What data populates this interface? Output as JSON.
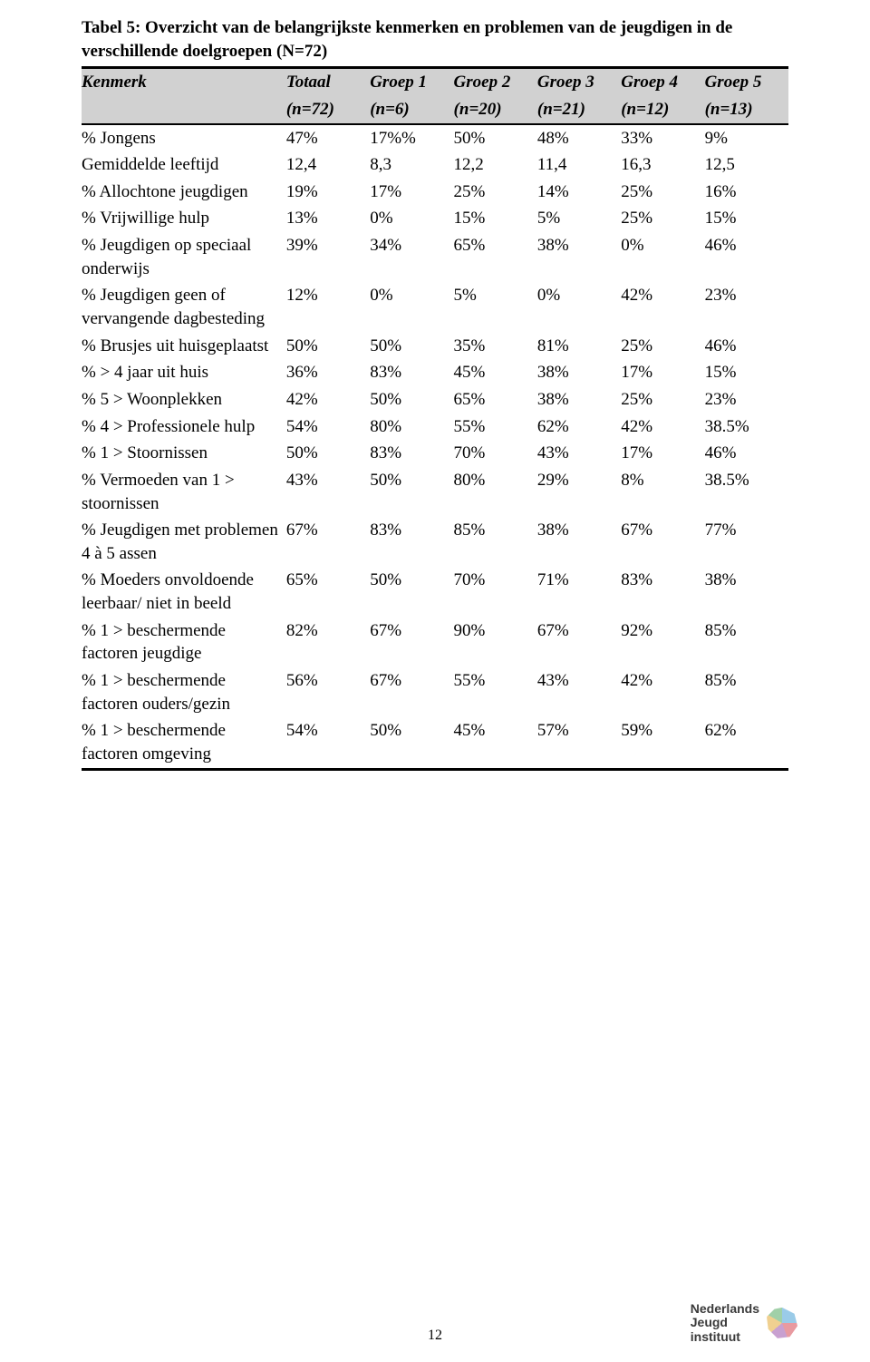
{
  "caption_line1": "Tabel 5: Overzicht van de belangrijkste kenmerken en problemen van de jeugdigen in de",
  "caption_line2": "verschillende doelgroepen (N=72)",
  "page_number": "12",
  "logo_line1": "Nederlands",
  "logo_line2": "Jeugd",
  "logo_line3": "instituut",
  "header_row1": [
    "Kenmerk",
    "Totaal",
    "Groep 1",
    "Groep 2",
    "Groep 3",
    "Groep 4",
    "Groep 5"
  ],
  "header_row2": [
    "",
    "(n=72)",
    "(n=6)",
    "(n=20)",
    "(n=21)",
    "(n=12)",
    "(n=13)"
  ],
  "rows": [
    {
      "label": "% Jongens",
      "vals": [
        "47%",
        "17%%",
        "50%",
        "48%",
        "33%",
        "9%"
      ]
    },
    {
      "label": "Gemiddelde leeftijd",
      "vals": [
        "12,4",
        "8,3",
        "12,2",
        "11,4",
        "16,3",
        "12,5"
      ]
    },
    {
      "label": "% Allochtone jeugdigen",
      "vals": [
        "19%",
        "17%",
        "25%",
        "14%",
        "25%",
        "16%"
      ]
    },
    {
      "label": "% Vrijwillige hulp",
      "vals": [
        "13%",
        "0%",
        "15%",
        "5%",
        "25%",
        "15%"
      ]
    },
    {
      "label": "% Jeugdigen op speciaal onderwijs",
      "vals": [
        "39%",
        "34%",
        "65%",
        "38%",
        "0%",
        "46%"
      ]
    },
    {
      "label": "% Jeugdigen geen of vervangende dagbesteding",
      "vals": [
        "12%",
        "0%",
        "5%",
        "0%",
        "42%",
        "23%"
      ]
    },
    {
      "label": "% Brusjes uit huisgeplaatst",
      "vals": [
        "50%",
        "50%",
        "35%",
        "81%",
        "25%",
        "46%"
      ]
    },
    {
      "label": "% > 4 jaar uit huis",
      "vals": [
        "36%",
        "83%",
        "45%",
        "38%",
        "17%",
        "15%"
      ]
    },
    {
      "label": "% 5 > Woonplekken",
      "vals": [
        "42%",
        "50%",
        "65%",
        "38%",
        "25%",
        "23%"
      ]
    },
    {
      "label": "% 4 > Professionele hulp",
      "vals": [
        "54%",
        "80%",
        "55%",
        "62%",
        "42%",
        "38.5%"
      ]
    },
    {
      "label": "% 1 > Stoornissen",
      "vals": [
        "50%",
        "83%",
        "70%",
        "43%",
        "17%",
        "46%"
      ]
    },
    {
      "label": "% Vermoeden van 1 > stoornissen",
      "vals": [
        "43%",
        "50%",
        "80%",
        "29%",
        "8%",
        "38.5%"
      ]
    },
    {
      "label": "% Jeugdigen met problemen 4 à 5 assen",
      "vals": [
        "67%",
        "83%",
        "85%",
        "38%",
        "67%",
        "77%"
      ]
    },
    {
      "label": "% Moeders onvoldoende leerbaar/ niet in beeld",
      "vals": [
        "65%",
        "50%",
        "70%",
        "71%",
        "83%",
        "38%"
      ]
    },
    {
      "label": "% 1 > beschermende factoren jeugdige",
      "vals": [
        "82%",
        "67%",
        "90%",
        "67%",
        "92%",
        "85%"
      ]
    },
    {
      "label": "% 1 > beschermende factoren ouders/gezin",
      "vals": [
        "56%",
        "67%",
        "55%",
        "43%",
        "42%",
        "85%"
      ]
    },
    {
      "label": "% 1 > beschermende factoren omgeving",
      "vals": [
        "54%",
        "50%",
        "45%",
        "57%",
        "59%",
        "62%"
      ]
    }
  ]
}
